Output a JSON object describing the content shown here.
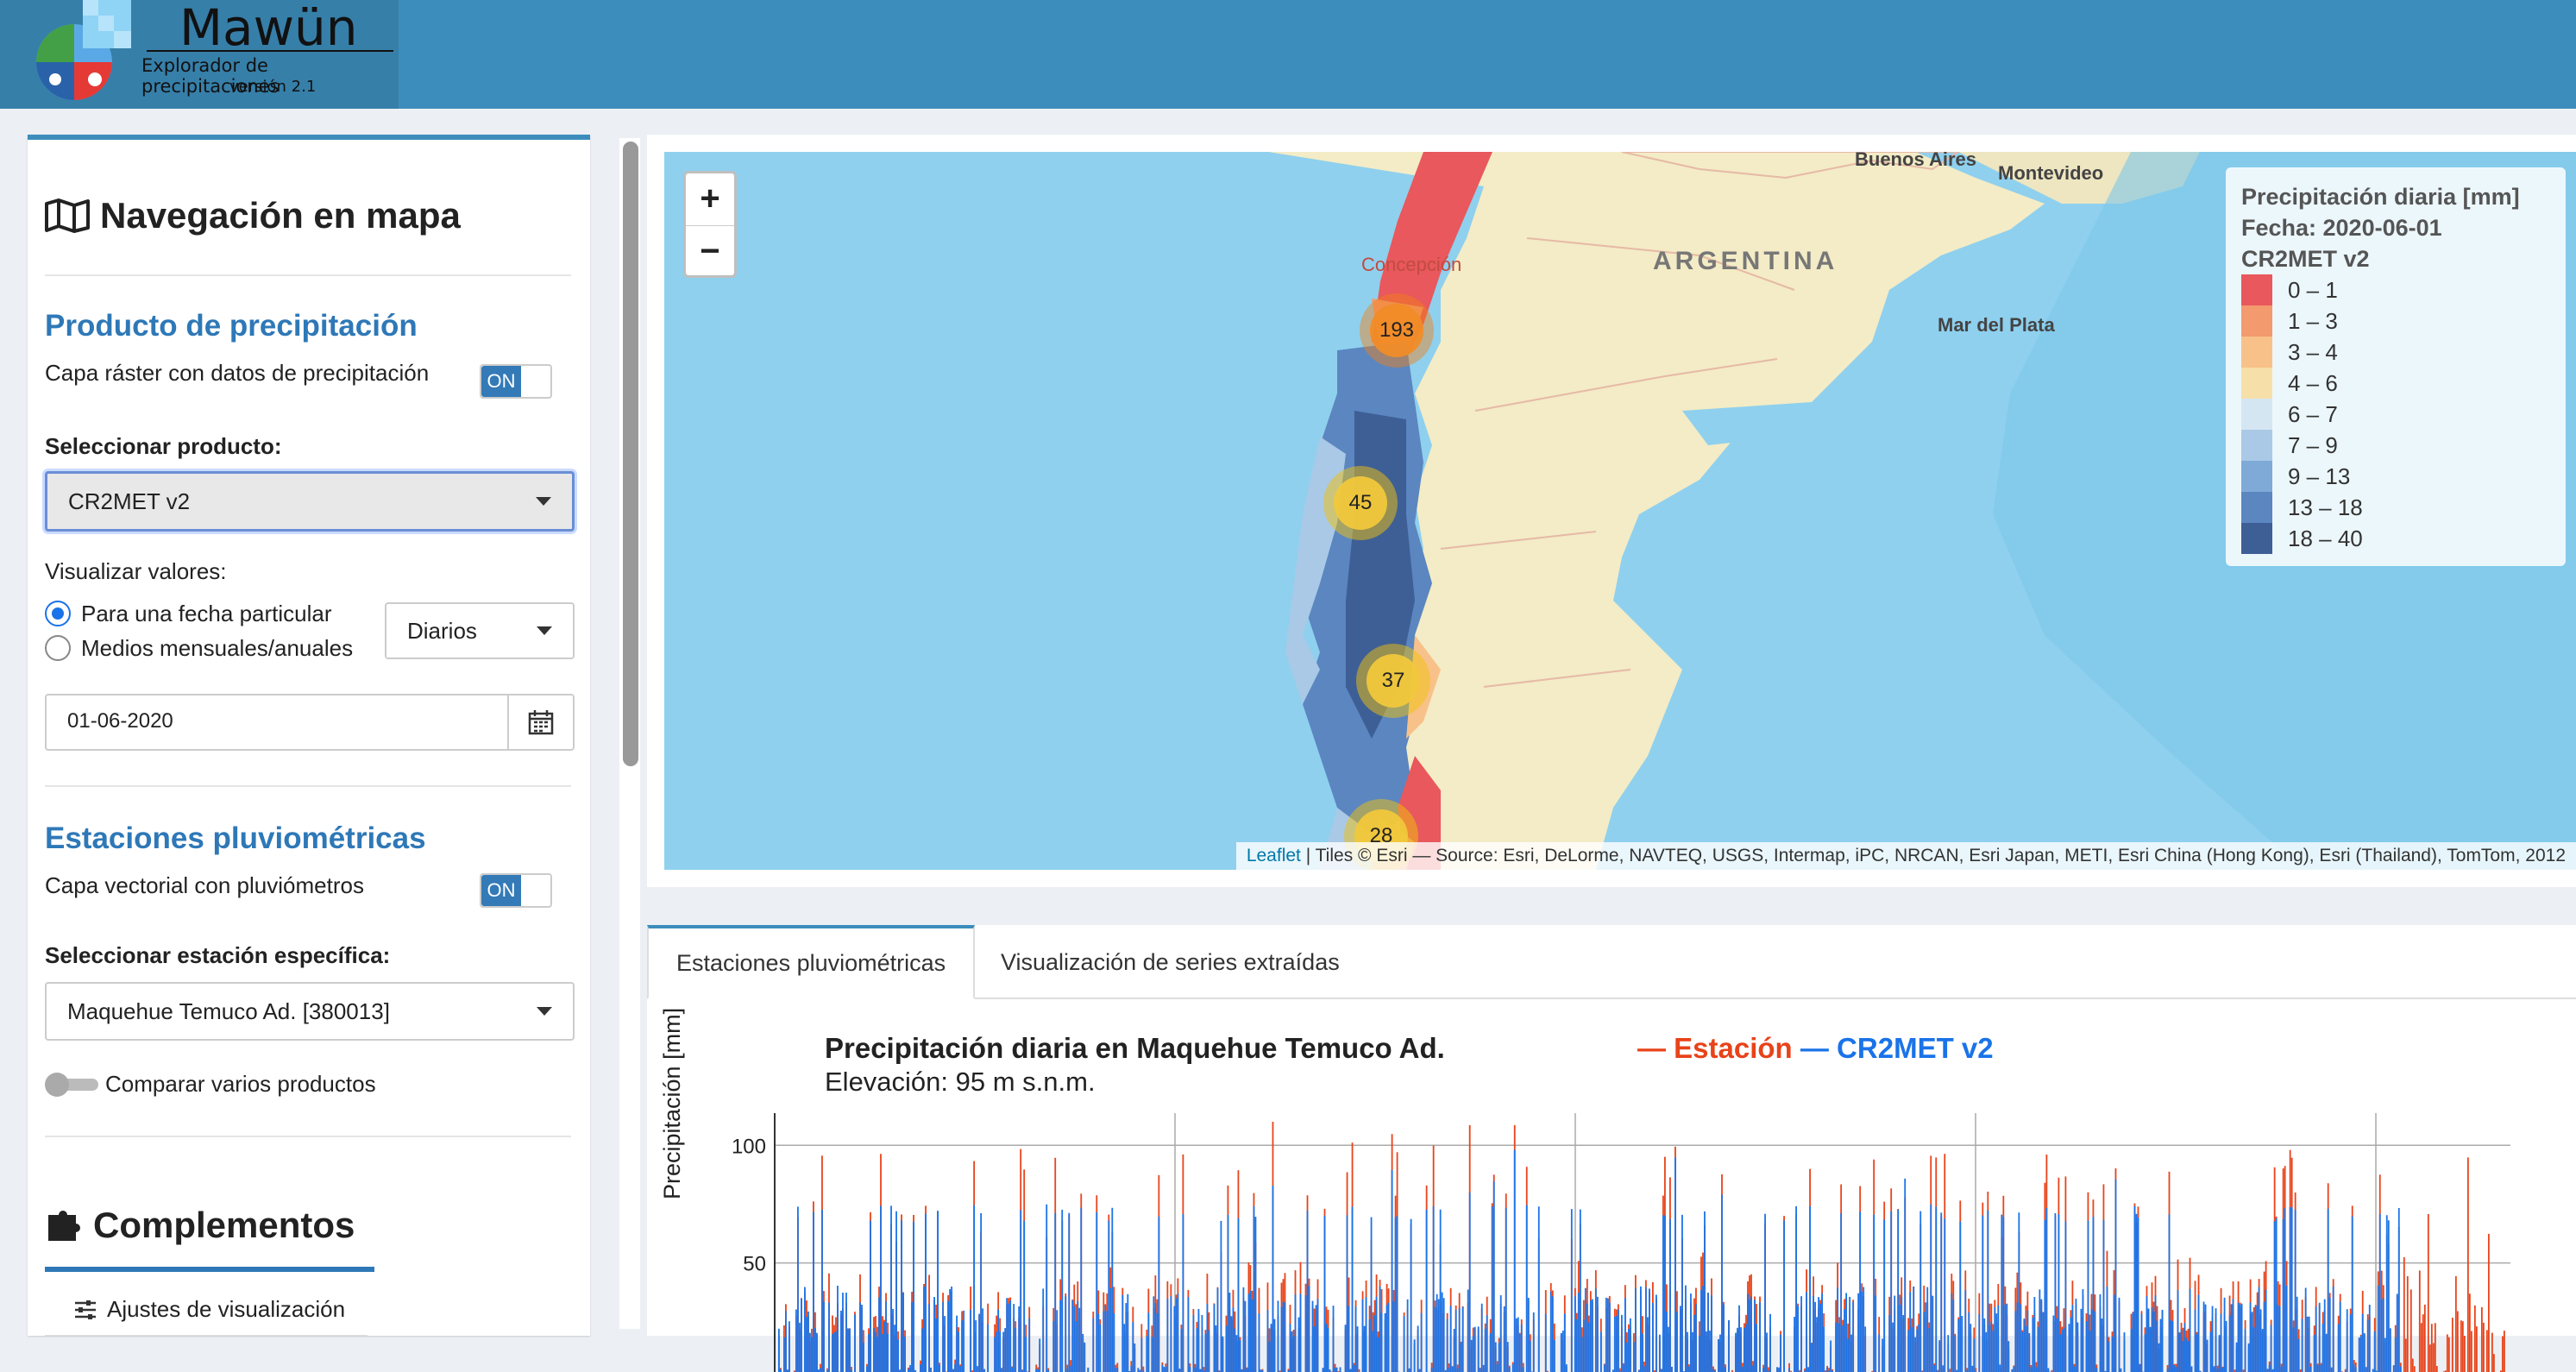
{
  "header": {
    "app_name": "Mawün",
    "subtitle": "Explorador de precipitaciones",
    "version": "versión 2.1"
  },
  "sidebar": {
    "nav_title": "Navegación en mapa",
    "product_section": {
      "title": "Producto de precipitación",
      "raster_label": "Capa ráster con datos de precipitación",
      "raster_toggle": "ON",
      "select_label": "Seleccionar producto:",
      "select_value": "CR2MET v2",
      "visualize_label": "Visualizar valores:",
      "radio_fecha": "Para una fecha particular",
      "radio_medios": "Medios mensuales/anuales",
      "period_value": "Diarios",
      "date_value": "01-06-2020"
    },
    "stations_section": {
      "title": "Estaciones pluviométricas",
      "vector_label": "Capa vectorial con pluviómetros",
      "vector_toggle": "ON",
      "station_label": "Seleccionar estación específica:",
      "station_value": "Maquehue Temuco Ad. [380013]",
      "compare_label": "Comparar varios productos"
    },
    "complements": {
      "title": "Complementos",
      "settings_button": "Ajustes de visualización"
    }
  },
  "map": {
    "legend": {
      "title1": "Precipitación diaria [mm]",
      "title2": "Fecha: 2020-06-01",
      "title3": "CR2MET v2",
      "items": [
        {
          "label": "0 – 1",
          "color": "#e8585c"
        },
        {
          "label": "1 – 3",
          "color": "#f39a6f"
        },
        {
          "label": "3 – 4",
          "color": "#f8c18a"
        },
        {
          "label": "4 – 6",
          "color": "#f6dfa8"
        },
        {
          "label": "6 – 7",
          "color": "#d5e6f3"
        },
        {
          "label": "7 – 9",
          "color": "#a9c9e6"
        },
        {
          "label": "9 – 13",
          "color": "#7faad8"
        },
        {
          "label": "13 – 18",
          "color": "#5b86c0"
        },
        {
          "label": "18 – 40",
          "color": "#3e5f96"
        }
      ]
    },
    "cities": {
      "buenos_aires": "Buenos Aires",
      "montevideo": "Montevideo",
      "mar_del_plata": "Mar del Plata",
      "concepcion": "Concepción"
    },
    "country": "ARGENTINA",
    "clusters": [
      "193",
      "45",
      "37",
      "28"
    ],
    "attribution_leaflet": "Leaflet",
    "attribution_rest": " | Tiles © Esri — Source: Esri, DeLorme, NAVTEQ, USGS, Intermap, iPC, NRCAN, Esri Japan, METI, Esri China (Hong Kong), Esri (Thailand), TomTom, 2012",
    "zoom_in": "+",
    "zoom_out": "−"
  },
  "bottom": {
    "tabs": [
      "Estaciones pluviométricas",
      "Visualización de series extraídas"
    ],
    "chart_title": "Precipitación diaria en Maquehue Temuco Ad.",
    "chart_subtitle": "Elevación: 95 m s.n.m.",
    "legend_station": "— Estación",
    "legend_product": "— CR2MET v2",
    "ylabel": "Precipitación [mm]"
  },
  "chart_data": {
    "type": "bar",
    "title": "Precipitación diaria en Maquehue Temuco Ad.",
    "ylabel": "Precipitación [mm]",
    "ylim": [
      0,
      110
    ],
    "yticks": [
      0,
      50,
      100
    ],
    "series": [
      {
        "name": "Estación",
        "color": "#e8431a"
      },
      {
        "name": "CR2MET v2",
        "color": "#1a73e8"
      }
    ]
  }
}
